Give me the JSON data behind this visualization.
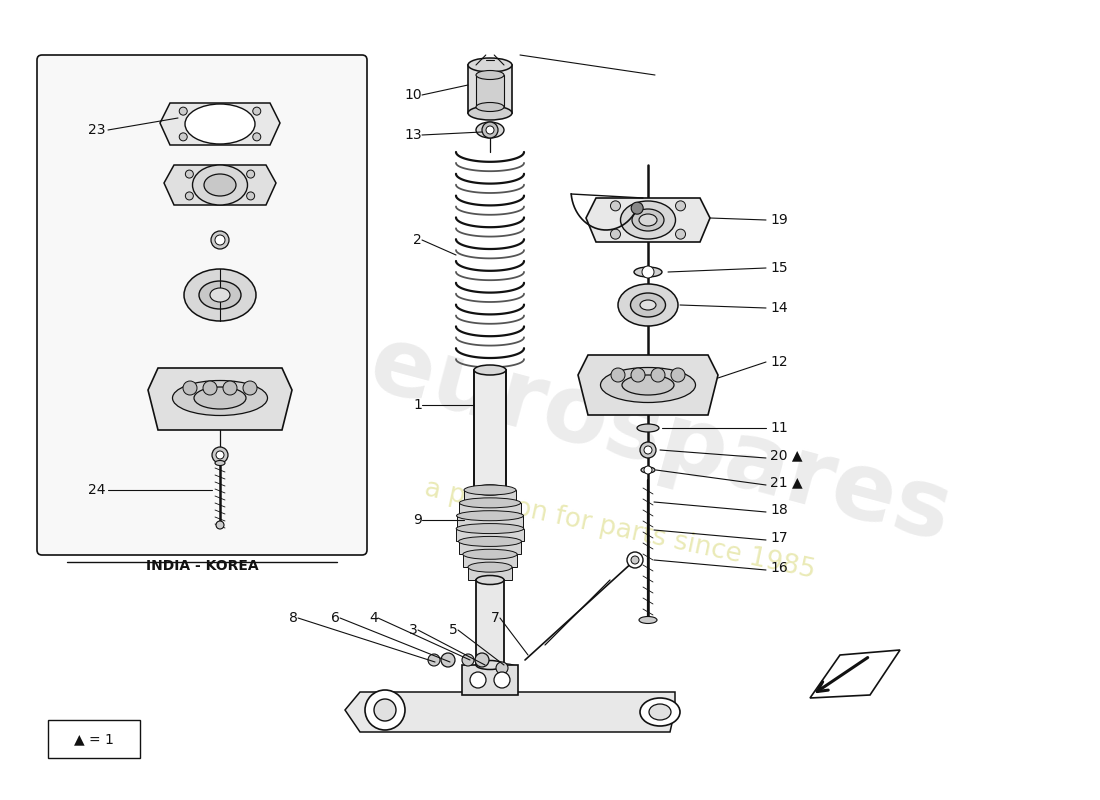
{
  "bg_color": "#ffffff",
  "india_korea_label": "INDIA - KOREA",
  "watermark1": "eurospares",
  "watermark2": "a passion for parts since 1985",
  "legend_text": "▲ = 1"
}
